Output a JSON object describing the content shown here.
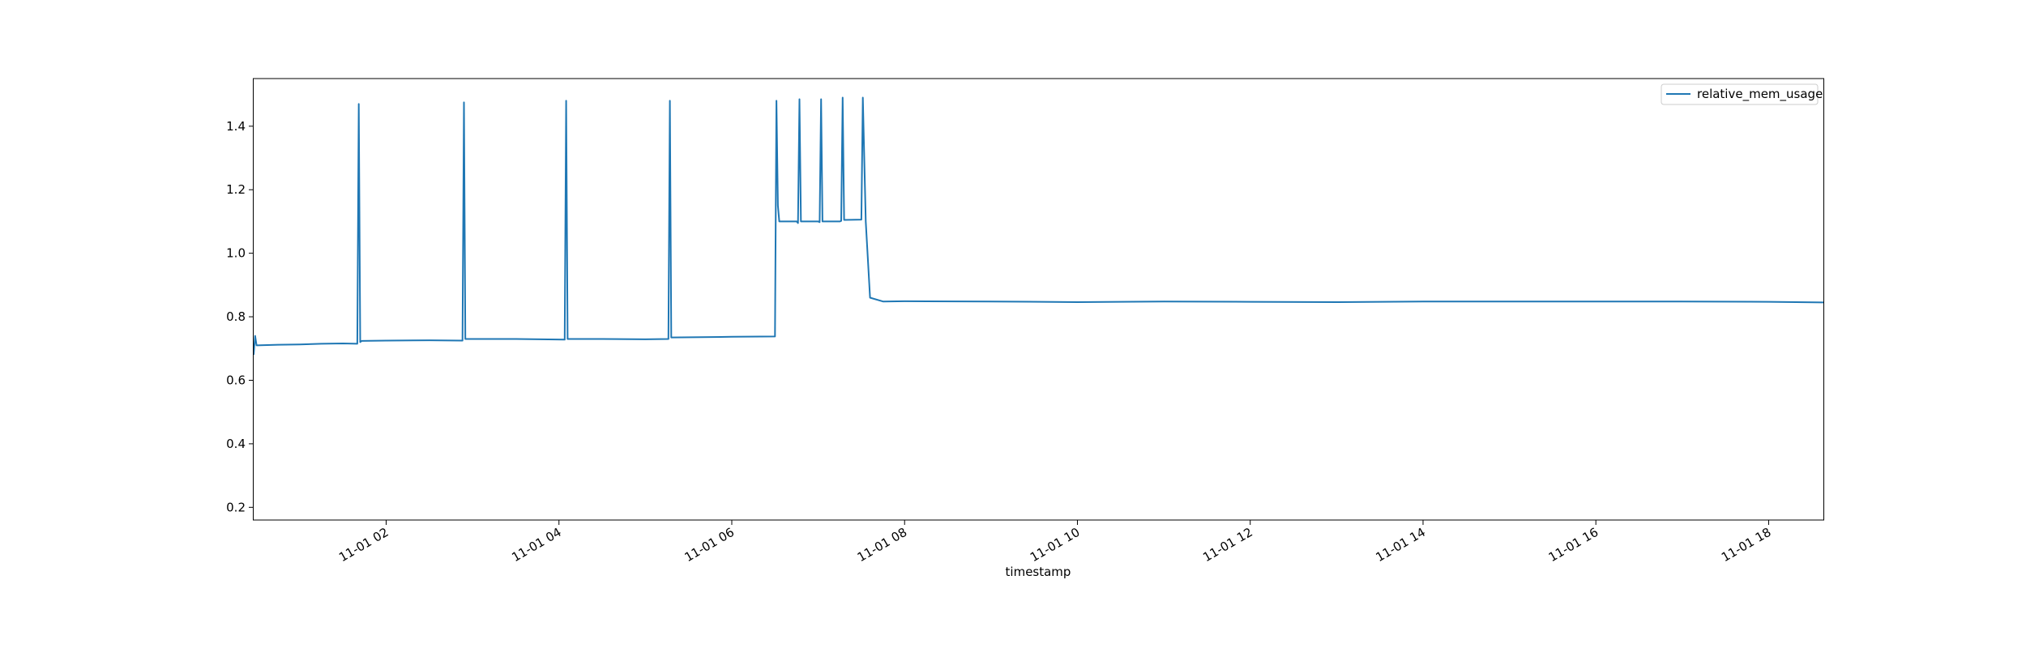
{
  "chart_data": {
    "type": "line",
    "title": "",
    "xlabel": "timestamp",
    "ylabel": "",
    "x_range": [
      "2023-11-01 00:28",
      "2023-11-01 18:38"
    ],
    "ylim": [
      0.16,
      1.55
    ],
    "x_tick_labels": [
      "11-01 02",
      "11-01 04",
      "11-01 06",
      "11-01 08",
      "11-01 10",
      "11-01 12",
      "11-01 14",
      "11-01 16",
      "11-01 18"
    ],
    "x_tick_times": [
      "2023-11-01 02:00",
      "2023-11-01 04:00",
      "2023-11-01 06:00",
      "2023-11-01 08:00",
      "2023-11-01 10:00",
      "2023-11-01 12:00",
      "2023-11-01 14:00",
      "2023-11-01 16:00",
      "2023-11-01 18:00"
    ],
    "y_ticks": [
      0.2,
      0.4,
      0.6,
      0.8,
      1.0,
      1.2,
      1.4
    ],
    "y_tick_labels": [
      "0.2",
      "0.4",
      "0.6",
      "0.8",
      "1.0",
      "1.2",
      "1.4"
    ],
    "grid": false,
    "legend": "top-right",
    "series": [
      {
        "name": "relative_mem_usage",
        "color": "#1f77b4",
        "x": [
          "2023-11-01 00:28",
          "2023-11-01 00:29",
          "2023-11-01 00:30",
          "2023-11-01 00:45",
          "2023-11-01 01:00",
          "2023-11-01 01:15",
          "2023-11-01 01:30",
          "2023-11-01 01:40",
          "2023-11-01 01:41",
          "2023-11-01 01:42",
          "2023-11-01 01:43",
          "2023-11-01 02:00",
          "2023-11-01 02:30",
          "2023-11-01 02:53",
          "2023-11-01 02:54",
          "2023-11-01 02:55",
          "2023-11-01 03:30",
          "2023-11-01 04:04",
          "2023-11-01 04:05",
          "2023-11-01 04:06",
          "2023-11-01 04:30",
          "2023-11-01 05:00",
          "2023-11-01 05:16",
          "2023-11-01 05:17",
          "2023-11-01 05:18",
          "2023-11-01 06:00",
          "2023-11-01 06:30",
          "2023-11-01 06:31",
          "2023-11-01 06:32",
          "2023-11-01 06:33",
          "2023-11-01 06:45",
          "2023-11-01 06:46",
          "2023-11-01 06:47",
          "2023-11-01 06:48",
          "2023-11-01 07:00",
          "2023-11-01 07:01",
          "2023-11-01 07:02",
          "2023-11-01 07:03",
          "2023-11-01 07:15",
          "2023-11-01 07:16",
          "2023-11-01 07:17",
          "2023-11-01 07:18",
          "2023-11-01 07:30",
          "2023-11-01 07:31",
          "2023-11-01 07:33",
          "2023-11-01 07:36",
          "2023-11-01 07:45",
          "2023-11-01 08:00",
          "2023-11-01 09:00",
          "2023-11-01 10:00",
          "2023-11-01 11:00",
          "2023-11-01 12:00",
          "2023-11-01 13:00",
          "2023-11-01 14:00",
          "2023-11-01 15:00",
          "2023-11-01 16:00",
          "2023-11-01 17:00",
          "2023-11-01 18:00",
          "2023-11-01 18:38"
        ],
        "y": [
          0.68,
          0.74,
          0.71,
          0.712,
          0.713,
          0.715,
          0.716,
          0.715,
          1.47,
          0.72,
          0.724,
          0.725,
          0.726,
          0.725,
          1.475,
          0.73,
          0.73,
          0.728,
          1.48,
          0.73,
          0.73,
          0.729,
          0.73,
          1.48,
          0.735,
          0.737,
          0.738,
          1.48,
          1.15,
          1.1,
          1.1,
          1.095,
          1.485,
          1.1,
          1.1,
          1.098,
          1.485,
          1.1,
          1.1,
          1.102,
          1.49,
          1.105,
          1.106,
          1.49,
          1.1,
          0.86,
          0.848,
          0.849,
          0.848,
          0.846,
          0.848,
          0.847,
          0.846,
          0.848,
          0.848,
          0.848,
          0.848,
          0.847,
          0.845
        ]
      }
    ]
  }
}
